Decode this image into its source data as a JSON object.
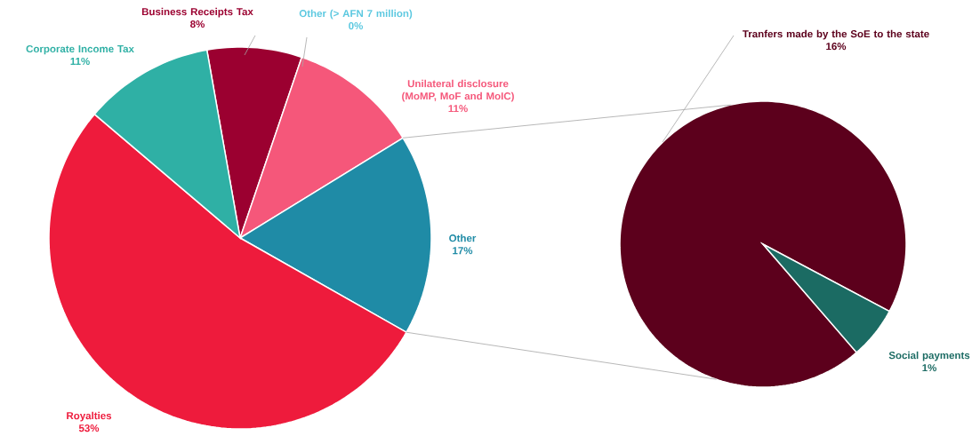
{
  "chart_data": [
    {
      "type": "pie",
      "categories": [
        "Business Receipts Tax",
        "Other (> AFN 7 million)",
        "Unilateral disclosure (MoMP, MoF and MoIC)",
        "Other",
        "Royalties",
        "Corporate Income Tax"
      ],
      "values": [
        8,
        0,
        11,
        17,
        53,
        11
      ],
      "value_labels": [
        "8%",
        "0%",
        "11%",
        "17%",
        "53%",
        "11%"
      ],
      "colors": [
        "#9b0030",
        "#5bc8e0",
        "#f5577a",
        "#1f8ba6",
        "#ee1b3c",
        "#2fb0a5"
      ]
    },
    {
      "type": "pie",
      "categories": [
        "Tranfers made by the SoE to the state",
        "Social payments"
      ],
      "values": [
        16,
        1
      ],
      "value_labels": [
        "16%",
        "1%"
      ],
      "colors": [
        "#5c001c",
        "#1b6b63"
      ]
    }
  ]
}
